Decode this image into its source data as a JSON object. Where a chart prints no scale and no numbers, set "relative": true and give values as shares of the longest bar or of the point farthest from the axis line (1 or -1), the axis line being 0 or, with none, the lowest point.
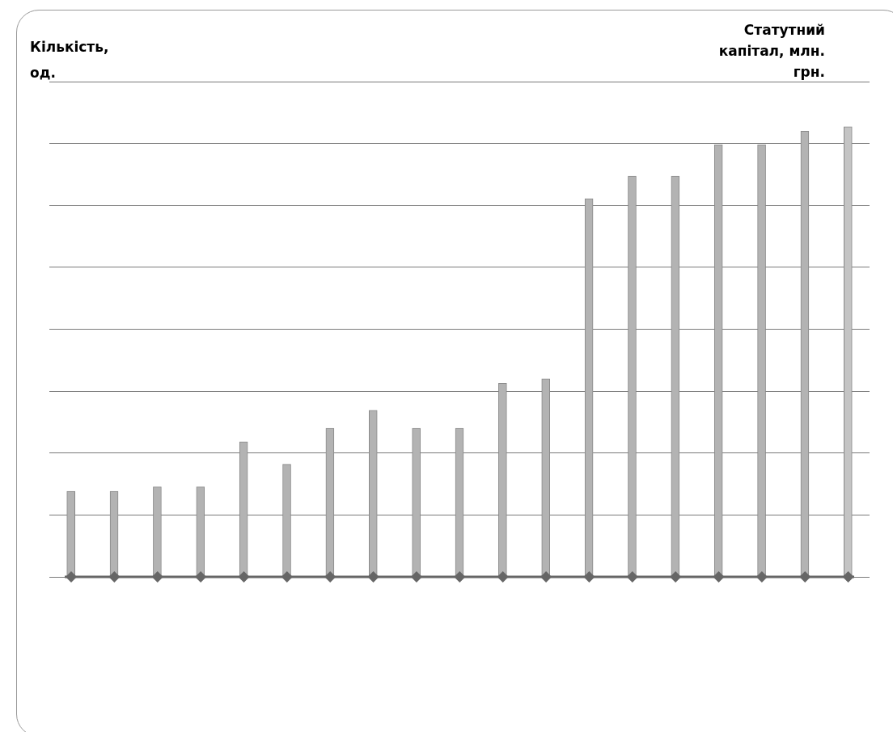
{
  "chart_data": {
    "type": "bar",
    "ylabel": "Кількість, од.",
    "y2label": "Статутний капітал, млн. грн.",
    "relative": true,
    "grid": "y",
    "legend": false,
    "categories": [
      null,
      null,
      null,
      null,
      null,
      null,
      null,
      null,
      null,
      null,
      null,
      null,
      null,
      null,
      null,
      null,
      null,
      null,
      null
    ],
    "series": [
      {
        "colors": [
          "#b3b3b3",
          "#b3b3b3",
          "#b3b3b3",
          "#b3b3b3",
          "#b3b3b3",
          "#b3b3b3",
          "#b3b3b3",
          "#b3b3b3",
          "#b3b3b3",
          "#b3b3b3",
          "#b3b3b3",
          "#b3b3b3",
          "#b3b3b3",
          "#b3b3b3",
          "#b3b3b3",
          "#b3b3b3",
          "#b3b3b3",
          "#b3b3b3",
          "#c4c4c4"
        ],
        "values": [
          0.19,
          0.19,
          0.2,
          0.2,
          0.3,
          0.25,
          0.33,
          0.37,
          0.33,
          0.33,
          0.43,
          0.44,
          0.84,
          0.89,
          0.89,
          0.96,
          0.96,
          0.99,
          1
        ]
      }
    ]
  }
}
